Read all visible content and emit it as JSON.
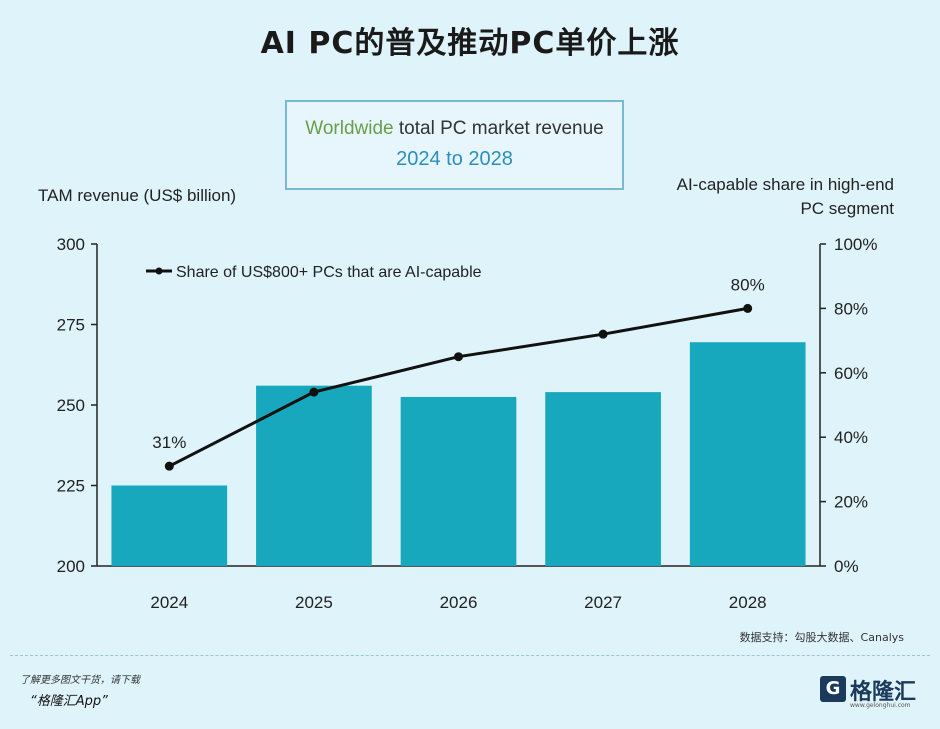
{
  "page": {
    "title": "AI PC的普及推动PC单价上涨",
    "source": "数据支持：勾股大数据、Canalys",
    "footer_note": "了解更多图文干货，请下载",
    "footer_app": "“格隆汇App”",
    "logo_mark": "G",
    "logo_text": "格隆汇",
    "logo_url": "www.gelonghui.com"
  },
  "chart_data": {
    "type": "bar",
    "title_part1": "Worldwide",
    "title_part2": "total PC market revenue",
    "subtitle": "2024 to 2028",
    "ylabel": "TAM revenue (US$ billion)",
    "y2label_line1": "AI-capable share in high-end",
    "y2label_line2": "PC segment",
    "categories": [
      "2024",
      "2025",
      "2026",
      "2027",
      "2028"
    ],
    "ylim": [
      200,
      300
    ],
    "yticks": [
      200,
      225,
      250,
      275,
      300
    ],
    "y2lim": [
      0,
      100
    ],
    "y2ticks": [
      0,
      20,
      40,
      60,
      80,
      100
    ],
    "y2tick_labels": [
      "0%",
      "20%",
      "40%",
      "60%",
      "80%",
      "100%"
    ],
    "series": [
      {
        "type": "bar",
        "axis": "left",
        "values": [
          225,
          256,
          252.5,
          254,
          269.5
        ],
        "color": "#17a8bd"
      },
      {
        "type": "line",
        "axis": "right",
        "name": "Share of US$800+ PCs that are AI-capable",
        "values": [
          31,
          54,
          65,
          72,
          80
        ],
        "labels": [
          "31%",
          "",
          "",
          "",
          "80%"
        ],
        "color": "#111111"
      }
    ],
    "legend_position": "top-left",
    "grid": false
  }
}
